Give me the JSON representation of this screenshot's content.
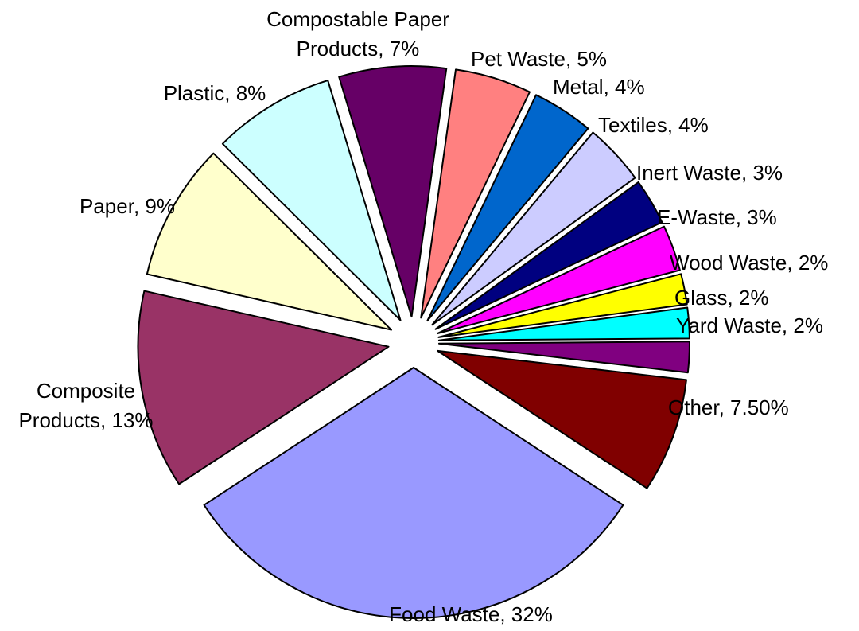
{
  "chart_data": {
    "type": "pie",
    "title": "",
    "exploded": true,
    "slices": [
      {
        "name": "Food Waste",
        "value": 32,
        "label": "Food Waste, 32%",
        "color": "#9999FF"
      },
      {
        "name": "Other",
        "value": 7.5,
        "label": "Other, 7.50%",
        "color": "#800000"
      },
      {
        "name": "Yard Waste",
        "value": 2,
        "label": "Yard Waste, 2%",
        "color": "#800080"
      },
      {
        "name": "Glass",
        "value": 2,
        "label": "Glass, 2%",
        "color": "#00FFFF"
      },
      {
        "name": "Wood Waste",
        "value": 2,
        "label": "Wood Waste, 2%",
        "color": "#FFFF00"
      },
      {
        "name": "E-Waste",
        "value": 3,
        "label": "E-Waste, 3%",
        "color": "#FF00FF"
      },
      {
        "name": "Inert Waste",
        "value": 3,
        "label": "Inert Waste, 3%",
        "color": "#000080"
      },
      {
        "name": "Textiles",
        "value": 4,
        "label": "Textiles, 4%",
        "color": "#CCCCFF"
      },
      {
        "name": "Metal",
        "value": 4,
        "label": "Metal, 4%",
        "color": "#0066CC"
      },
      {
        "name": "Pet Waste",
        "value": 5,
        "label": "Pet Waste, 5%",
        "color": "#FF8080"
      },
      {
        "name": "Compostable Paper Products",
        "value": 7,
        "label": "Compostable Paper Products, 7%",
        "label_lines": [
          "Compostable Paper",
          "Products, 7%"
        ],
        "color": "#660066"
      },
      {
        "name": "Plastic",
        "value": 8,
        "label": "Plastic, 8%",
        "color": "#CCFFFF"
      },
      {
        "name": "Paper",
        "value": 9,
        "label": "Paper, 9%",
        "color": "#FFFFCC"
      },
      {
        "name": "Composite Products",
        "value": 13,
        "label": "Composite Products, 13%",
        "label_lines": [
          "Composite",
          "Products, 13%"
        ],
        "color": "#993366"
      }
    ]
  }
}
